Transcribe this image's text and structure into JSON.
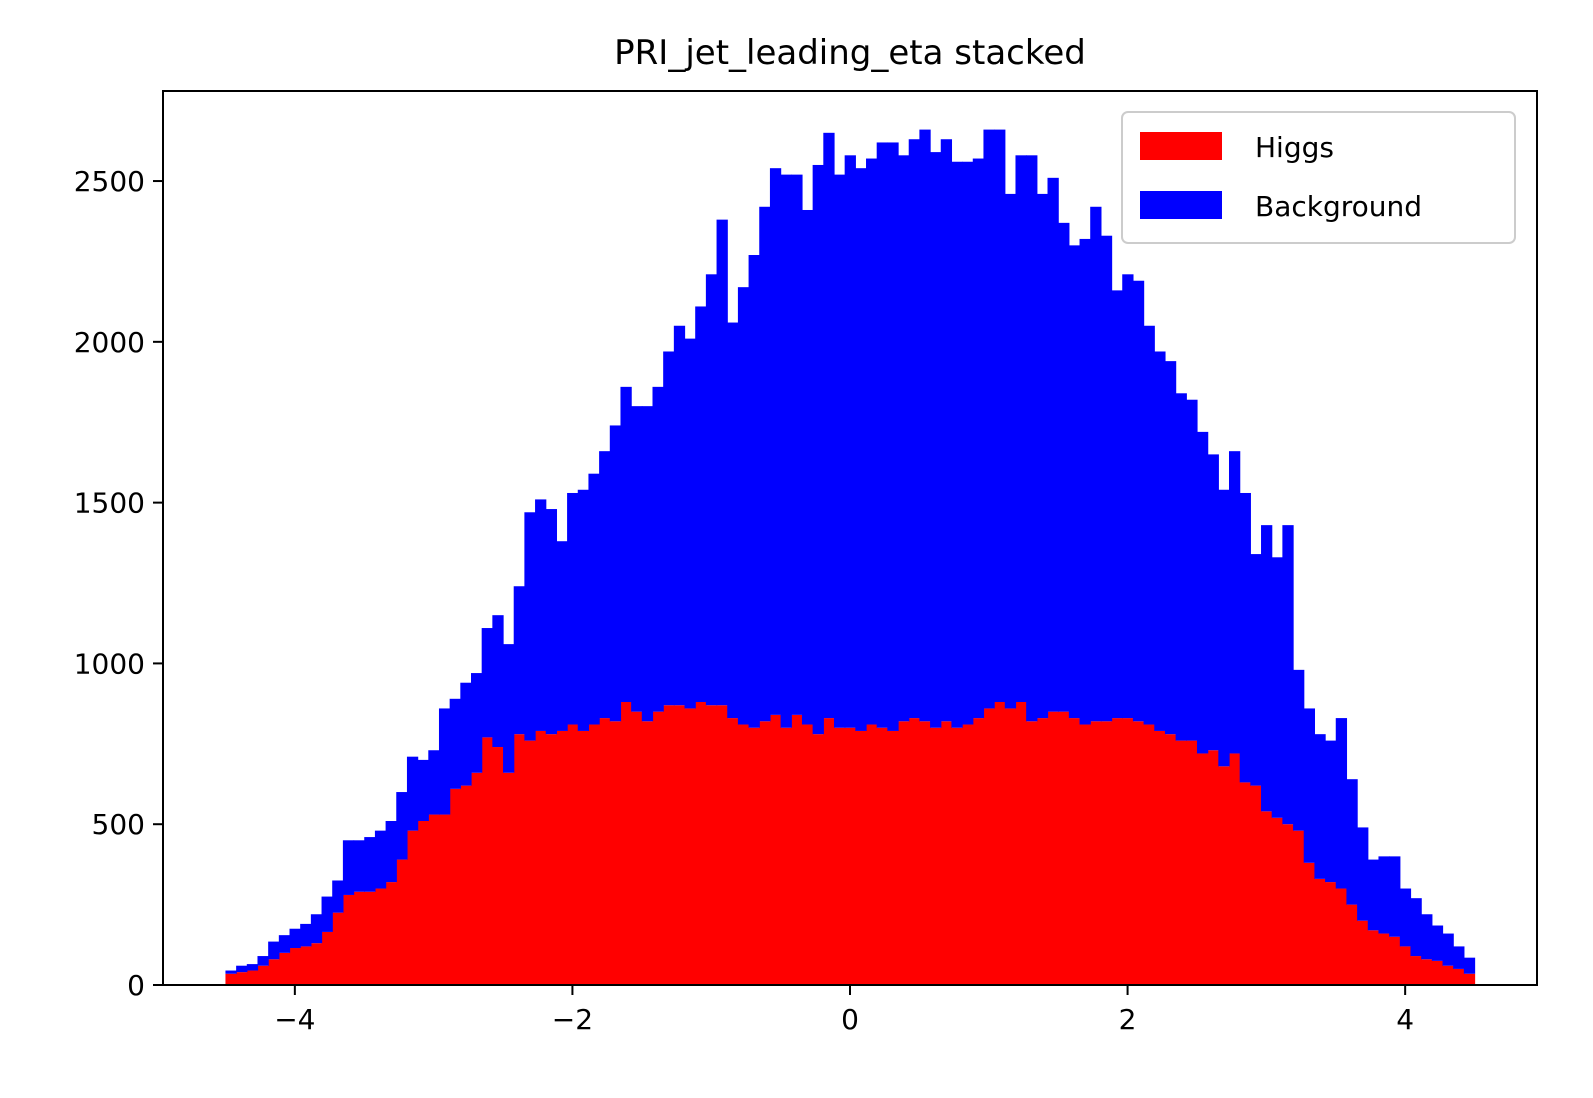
{
  "chart_data": {
    "type": "bar",
    "stacked": true,
    "title": "PRI_jet_leading_eta stacked",
    "xlabel": "",
    "ylabel": "",
    "xlim": [
      -4.95,
      4.95
    ],
    "ylim": [
      0,
      2780
    ],
    "bin_range": [
      -4.5,
      4.5
    ],
    "xticks": [
      -4,
      -2,
      0,
      2,
      4
    ],
    "xtick_labels": [
      "−4",
      "−2",
      "0",
      "2",
      "4"
    ],
    "yticks": [
      0,
      500,
      1000,
      1500,
      2000,
      2500
    ],
    "ytick_labels": [
      "0",
      "500",
      "1000",
      "1500",
      "2000",
      "2500"
    ],
    "legend_position": "top-right",
    "series": [
      {
        "name": "Higgs",
        "color": "#ff0000",
        "values": [
          35,
          40,
          45,
          60,
          80,
          100,
          115,
          120,
          130,
          165,
          225,
          280,
          290,
          290,
          300,
          320,
          390,
          480,
          510,
          530,
          530,
          610,
          620,
          660,
          770,
          740,
          660,
          780,
          760,
          790,
          780,
          790,
          810,
          790,
          810,
          830,
          820,
          880,
          850,
          820,
          850,
          870,
          870,
          860,
          880,
          870,
          870,
          830,
          810,
          800,
          820,
          840,
          800,
          840,
          810,
          780,
          830,
          800,
          800,
          790,
          810,
          800,
          790,
          820,
          830,
          820,
          800,
          820,
          800,
          810,
          830,
          860,
          880,
          860,
          880,
          820,
          830,
          850,
          850,
          830,
          810,
          820,
          820,
          830,
          830,
          820,
          810,
          790,
          780,
          760,
          760,
          720,
          730,
          680,
          720,
          630,
          620,
          540,
          520,
          500,
          480,
          380,
          330,
          320,
          300,
          250,
          200,
          170,
          160,
          150,
          120,
          90,
          80,
          75,
          60,
          50,
          35
        ]
      },
      {
        "name": "Background",
        "color": "#0000ff",
        "values": [
          10,
          20,
          20,
          30,
          55,
          55,
          60,
          70,
          90,
          110,
          100,
          170,
          160,
          170,
          180,
          190,
          210,
          230,
          190,
          200,
          330,
          280,
          320,
          310,
          340,
          410,
          400,
          460,
          710,
          720,
          700,
          590,
          720,
          750,
          780,
          830,
          920,
          980,
          950,
          980,
          1010,
          1100,
          1180,
          1150,
          1230,
          1340,
          1510,
          1230,
          1360,
          1470,
          1600,
          1700,
          1720,
          1680,
          1600,
          1770,
          1820,
          1720,
          1780,
          1750,
          1760,
          1820,
          1830,
          1760,
          1800,
          1840,
          1790,
          1810,
          1760,
          1750,
          1740,
          1800,
          1780,
          1600,
          1700,
          1760,
          1630,
          1660,
          1520,
          1470,
          1510,
          1600,
          1510,
          1330,
          1380,
          1370,
          1240,
          1180,
          1160,
          1080,
          1060,
          1000,
          920,
          860,
          940,
          900,
          720,
          890,
          810,
          930,
          500,
          480,
          450,
          440,
          530,
          390,
          290,
          220,
          240,
          250,
          180,
          180,
          140,
          110,
          100,
          70,
          50
        ]
      }
    ]
  }
}
